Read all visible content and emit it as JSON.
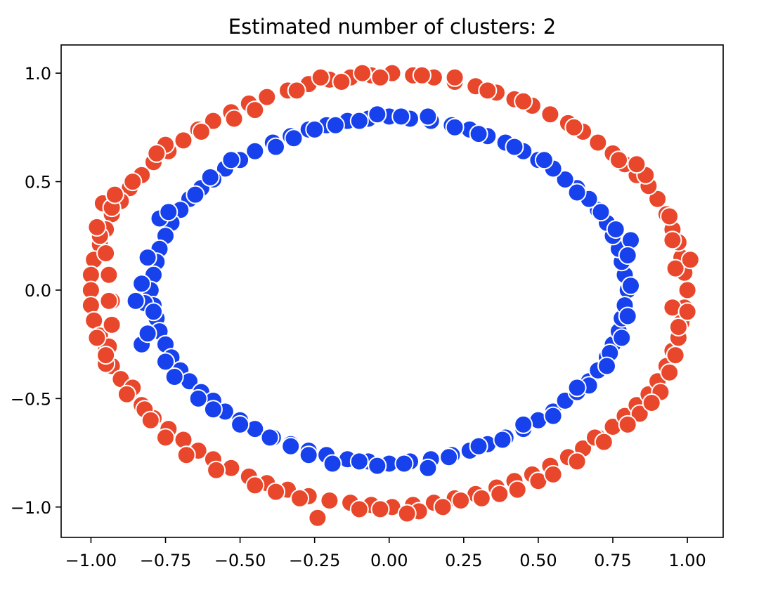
{
  "chart_data": {
    "type": "scatter",
    "title": "Estimated number of clusters: 2",
    "xlabel": "",
    "ylabel": "",
    "xlim": [
      -1.1,
      1.12
    ],
    "ylim": [
      -1.14,
      1.13
    ],
    "grid": false,
    "x_ticks": [
      -1.0,
      -0.75,
      -0.5,
      -0.25,
      0.0,
      0.25,
      0.5,
      0.75,
      1.0
    ],
    "x_tick_labels": [
      "−1.00",
      "−0.75",
      "−0.50",
      "−0.25",
      "0.00",
      "0.25",
      "0.50",
      "0.75",
      "1.00"
    ],
    "y_ticks": [
      -1.0,
      -0.5,
      0.0,
      0.5,
      1.0
    ],
    "y_tick_labels": [
      "−1.0",
      "−0.5",
      "0.0",
      "0.5",
      "1.0"
    ],
    "point_edge_color": "#ffffff",
    "series": [
      {
        "color": "#e9472b",
        "description": "outer ring",
        "points": [
          [
            1.0,
            0.0
          ],
          [
            0.99,
            0.08
          ],
          [
            0.98,
            0.15
          ],
          [
            0.97,
            0.22
          ],
          [
            0.95,
            0.28
          ],
          [
            0.93,
            0.35
          ],
          [
            0.9,
            0.42
          ],
          [
            0.87,
            0.48
          ],
          [
            0.83,
            0.53
          ],
          [
            0.79,
            0.58
          ],
          [
            0.75,
            0.63
          ],
          [
            0.7,
            0.68
          ],
          [
            0.65,
            0.73
          ],
          [
            0.6,
            0.77
          ],
          [
            0.54,
            0.81
          ],
          [
            0.48,
            0.85
          ],
          [
            0.42,
            0.88
          ],
          [
            0.36,
            0.91
          ],
          [
            0.29,
            0.94
          ],
          [
            0.22,
            0.96
          ],
          [
            0.15,
            0.98
          ],
          [
            0.08,
            0.99
          ],
          [
            0.01,
            1.0
          ],
          [
            -0.06,
            0.99
          ],
          [
            -0.13,
            0.98
          ],
          [
            -0.2,
            0.97
          ],
          [
            -0.27,
            0.95
          ],
          [
            -0.34,
            0.92
          ],
          [
            -0.41,
            0.89
          ],
          [
            -0.47,
            0.86
          ],
          [
            -0.53,
            0.82
          ],
          [
            -0.59,
            0.78
          ],
          [
            -0.64,
            0.74
          ],
          [
            -0.69,
            0.69
          ],
          [
            -0.74,
            0.64
          ],
          [
            -0.79,
            0.59
          ],
          [
            -0.83,
            0.53
          ],
          [
            -0.87,
            0.47
          ],
          [
            -0.9,
            0.41
          ],
          [
            -0.93,
            0.35
          ],
          [
            -0.95,
            0.28
          ],
          [
            -0.97,
            0.21
          ],
          [
            -0.99,
            0.14
          ],
          [
            -1.0,
            0.07
          ],
          [
            -1.0,
            0.0
          ],
          [
            -1.0,
            -0.07
          ],
          [
            -0.99,
            -0.14
          ],
          [
            -0.97,
            -0.21
          ],
          [
            -0.95,
            -0.28
          ],
          [
            -0.93,
            -0.35
          ],
          [
            -0.9,
            -0.41
          ],
          [
            -0.87,
            -0.47
          ],
          [
            -0.83,
            -0.53
          ],
          [
            -0.79,
            -0.59
          ],
          [
            -0.74,
            -0.64
          ],
          [
            -0.69,
            -0.69
          ],
          [
            -0.64,
            -0.74
          ],
          [
            -0.59,
            -0.78
          ],
          [
            -0.53,
            -0.82
          ],
          [
            -0.47,
            -0.86
          ],
          [
            -0.41,
            -0.89
          ],
          [
            -0.34,
            -0.92
          ],
          [
            -0.27,
            -0.95
          ],
          [
            -0.2,
            -0.97
          ],
          [
            -0.13,
            -0.98
          ],
          [
            -0.06,
            -0.99
          ],
          [
            0.01,
            -1.0
          ],
          [
            0.08,
            -0.99
          ],
          [
            0.15,
            -0.98
          ],
          [
            0.22,
            -0.96
          ],
          [
            0.29,
            -0.94
          ],
          [
            0.36,
            -0.91
          ],
          [
            0.42,
            -0.88
          ],
          [
            0.48,
            -0.85
          ],
          [
            0.54,
            -0.81
          ],
          [
            0.6,
            -0.77
          ],
          [
            0.65,
            -0.73
          ],
          [
            0.7,
            -0.68
          ],
          [
            0.75,
            -0.63
          ],
          [
            0.79,
            -0.58
          ],
          [
            0.83,
            -0.53
          ],
          [
            0.87,
            -0.48
          ],
          [
            0.9,
            -0.42
          ],
          [
            0.93,
            -0.35
          ],
          [
            0.95,
            -0.28
          ],
          [
            0.97,
            -0.22
          ],
          [
            0.98,
            -0.15
          ],
          [
            0.99,
            -0.08
          ],
          [
            -0.96,
            0.4
          ],
          [
            -0.93,
            0.38
          ],
          [
            -0.97,
            0.25
          ],
          [
            -0.95,
            0.17
          ],
          [
            -0.94,
            0.07
          ],
          [
            -0.93,
            -0.05
          ],
          [
            -0.93,
            -0.16
          ],
          [
            -0.94,
            -0.26
          ],
          [
            -0.95,
            -0.34
          ],
          [
            -0.86,
            -0.45
          ],
          [
            -0.82,
            -0.55
          ],
          [
            -0.24,
            -1.05
          ],
          [
            -0.03,
            -1.01
          ],
          [
            0.1,
            -1.02
          ],
          [
            0.24,
            -0.97
          ],
          [
            0.37,
            -0.94
          ],
          [
            0.5,
            -0.88
          ],
          [
            0.69,
            -0.68
          ],
          [
            0.84,
            -0.57
          ],
          [
            0.91,
            -0.47
          ],
          [
            0.96,
            -0.3
          ],
          [
            0.97,
            -0.17
          ],
          [
            0.95,
            -0.08
          ],
          [
            0.96,
            0.1
          ],
          [
            0.95,
            0.23
          ],
          [
            0.94,
            0.34
          ],
          [
            0.86,
            0.53
          ],
          [
            0.83,
            0.58
          ],
          [
            0.77,
            0.6
          ],
          [
            0.62,
            0.75
          ],
          [
            0.45,
            0.87
          ],
          [
            0.33,
            0.92
          ],
          [
            0.22,
            0.98
          ],
          [
            0.11,
            0.99
          ],
          [
            -0.03,
            0.98
          ],
          [
            -0.09,
            1.0
          ],
          [
            -0.16,
            0.96
          ],
          [
            -0.23,
            0.98
          ],
          [
            -0.31,
            0.92
          ],
          [
            -0.45,
            0.83
          ],
          [
            -0.52,
            0.79
          ],
          [
            -0.63,
            0.73
          ],
          [
            -0.75,
            0.67
          ],
          [
            -0.78,
            0.63
          ],
          [
            -0.86,
            0.5
          ],
          [
            -0.92,
            0.44
          ],
          [
            -0.98,
            0.29
          ],
          [
            -0.94,
            -0.05
          ],
          [
            -0.98,
            -0.22
          ],
          [
            -0.95,
            -0.3
          ],
          [
            -0.88,
            -0.48
          ],
          [
            -0.8,
            -0.6
          ],
          [
            -0.75,
            -0.68
          ],
          [
            -0.68,
            -0.76
          ],
          [
            -0.58,
            -0.83
          ],
          [
            -0.45,
            -0.9
          ],
          [
            -0.38,
            -0.93
          ],
          [
            -0.3,
            -0.96
          ],
          [
            -0.1,
            -1.01
          ],
          [
            0.06,
            -1.03
          ],
          [
            0.18,
            -1.0
          ],
          [
            0.31,
            -0.96
          ],
          [
            0.43,
            -0.92
          ],
          [
            0.55,
            -0.85
          ],
          [
            0.63,
            -0.79
          ],
          [
            0.72,
            -0.7
          ],
          [
            0.8,
            -0.62
          ],
          [
            0.88,
            -0.52
          ],
          [
            0.94,
            -0.38
          ],
          [
            1.0,
            -0.1
          ],
          [
            1.01,
            0.14
          ]
        ]
      },
      {
        "color": "#1641ec",
        "description": "inner ring",
        "points": [
          [
            0.8,
            0.0
          ],
          [
            0.79,
            0.07
          ],
          [
            0.78,
            0.13
          ],
          [
            0.77,
            0.19
          ],
          [
            0.75,
            0.25
          ],
          [
            0.73,
            0.31
          ],
          [
            0.7,
            0.37
          ],
          [
            0.67,
            0.42
          ],
          [
            0.63,
            0.47
          ],
          [
            0.59,
            0.51
          ],
          [
            0.55,
            0.56
          ],
          [
            0.5,
            0.6
          ],
          [
            0.45,
            0.64
          ],
          [
            0.39,
            0.68
          ],
          [
            0.33,
            0.71
          ],
          [
            0.27,
            0.74
          ],
          [
            0.21,
            0.76
          ],
          [
            0.14,
            0.78
          ],
          [
            0.07,
            0.79
          ],
          [
            0.0,
            0.8
          ],
          [
            -0.07,
            0.79
          ],
          [
            -0.14,
            0.78
          ],
          [
            -0.21,
            0.76
          ],
          [
            -0.27,
            0.74
          ],
          [
            -0.33,
            0.71
          ],
          [
            -0.39,
            0.68
          ],
          [
            -0.45,
            0.64
          ],
          [
            -0.5,
            0.6
          ],
          [
            -0.55,
            0.56
          ],
          [
            -0.59,
            0.51
          ],
          [
            -0.63,
            0.47
          ],
          [
            -0.67,
            0.42
          ],
          [
            -0.7,
            0.37
          ],
          [
            -0.73,
            0.31
          ],
          [
            -0.75,
            0.25
          ],
          [
            -0.77,
            0.19
          ],
          [
            -0.78,
            0.13
          ],
          [
            -0.79,
            0.07
          ],
          [
            -0.8,
            0.0
          ],
          [
            -0.79,
            -0.07
          ],
          [
            -0.78,
            -0.13
          ],
          [
            -0.77,
            -0.19
          ],
          [
            -0.75,
            -0.25
          ],
          [
            -0.73,
            -0.31
          ],
          [
            -0.7,
            -0.37
          ],
          [
            -0.67,
            -0.42
          ],
          [
            -0.63,
            -0.47
          ],
          [
            -0.59,
            -0.51
          ],
          [
            -0.55,
            -0.56
          ],
          [
            -0.5,
            -0.6
          ],
          [
            -0.45,
            -0.64
          ],
          [
            -0.39,
            -0.68
          ],
          [
            -0.33,
            -0.71
          ],
          [
            -0.27,
            -0.74
          ],
          [
            -0.21,
            -0.76
          ],
          [
            -0.14,
            -0.78
          ],
          [
            -0.07,
            -0.79
          ],
          [
            0.0,
            -0.8
          ],
          [
            0.07,
            -0.79
          ],
          [
            0.14,
            -0.78
          ],
          [
            0.21,
            -0.76
          ],
          [
            0.27,
            -0.74
          ],
          [
            0.33,
            -0.71
          ],
          [
            0.39,
            -0.68
          ],
          [
            0.45,
            -0.64
          ],
          [
            0.5,
            -0.6
          ],
          [
            0.55,
            -0.56
          ],
          [
            0.59,
            -0.51
          ],
          [
            0.63,
            -0.47
          ],
          [
            0.67,
            -0.42
          ],
          [
            0.7,
            -0.37
          ],
          [
            0.73,
            -0.31
          ],
          [
            0.75,
            -0.25
          ],
          [
            0.77,
            -0.19
          ],
          [
            0.78,
            -0.13
          ],
          [
            0.79,
            -0.07
          ],
          [
            -0.83,
            0.03
          ],
          [
            -0.82,
            -0.06
          ],
          [
            -0.83,
            -0.25
          ],
          [
            -0.81,
            0.15
          ],
          [
            -0.77,
            0.33
          ],
          [
            -0.74,
            0.36
          ],
          [
            -0.65,
            0.44
          ],
          [
            -0.6,
            0.52
          ],
          [
            -0.53,
            0.6
          ],
          [
            -0.38,
            0.66
          ],
          [
            -0.32,
            0.7
          ],
          [
            -0.25,
            0.74
          ],
          [
            -0.18,
            0.76
          ],
          [
            -0.1,
            0.78
          ],
          [
            -0.04,
            0.81
          ],
          [
            0.04,
            0.8
          ],
          [
            0.13,
            0.8
          ],
          [
            0.22,
            0.75
          ],
          [
            0.3,
            0.72
          ],
          [
            0.42,
            0.66
          ],
          [
            0.52,
            0.6
          ],
          [
            0.63,
            0.45
          ],
          [
            0.71,
            0.36
          ],
          [
            0.76,
            0.28
          ],
          [
            0.81,
            0.23
          ],
          [
            0.8,
            0.16
          ],
          [
            0.81,
            0.02
          ],
          [
            0.8,
            -0.12
          ],
          [
            0.78,
            -0.22
          ],
          [
            0.74,
            -0.29
          ],
          [
            0.73,
            -0.35
          ],
          [
            0.67,
            -0.44
          ],
          [
            0.63,
            -0.45
          ],
          [
            0.55,
            -0.58
          ],
          [
            0.45,
            -0.62
          ],
          [
            0.38,
            -0.69
          ],
          [
            0.3,
            -0.72
          ],
          [
            0.2,
            -0.77
          ],
          [
            0.13,
            -0.82
          ],
          [
            0.05,
            -0.8
          ],
          [
            -0.04,
            -0.81
          ],
          [
            -0.1,
            -0.79
          ],
          [
            -0.19,
            -0.8
          ],
          [
            -0.27,
            -0.76
          ],
          [
            -0.33,
            -0.72
          ],
          [
            -0.4,
            -0.68
          ],
          [
            -0.5,
            -0.62
          ],
          [
            -0.59,
            -0.55
          ],
          [
            -0.64,
            -0.5
          ],
          [
            -0.72,
            -0.4
          ],
          [
            -0.75,
            -0.33
          ],
          [
            -0.81,
            -0.2
          ],
          [
            -0.79,
            -0.1
          ],
          [
            -0.85,
            -0.05
          ]
        ]
      }
    ]
  }
}
